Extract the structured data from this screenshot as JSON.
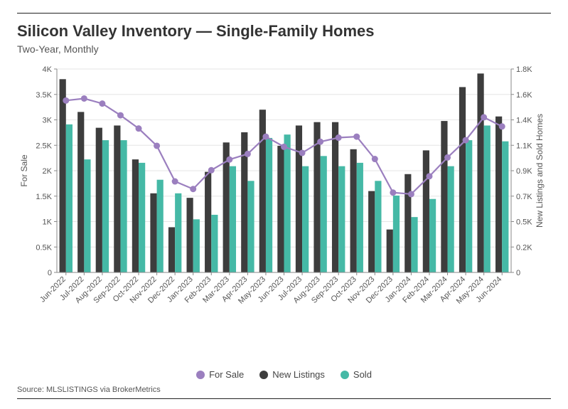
{
  "header": {
    "title": "Silicon Valley Inventory — Single-Family Homes",
    "subtitle": "Two-Year, Monthly"
  },
  "footer": {
    "source": "Source:  MLSLISTINGS via BrokerMetrics"
  },
  "legend": {
    "for_sale": "For Sale",
    "new_listings": "New Listings",
    "sold": "Sold"
  },
  "chart": {
    "type": "combo-bar-line",
    "background_color": "#ffffff",
    "gridline_color": "#e6e6e6",
    "axis_color": "#888888",
    "tick_label_color": "#555555",
    "tick_fontsize": 11,
    "axis_title_fontsize": 12,
    "x_tick_angle_deg": -45,
    "left_axis": {
      "title": "For Sale",
      "min": 0,
      "max": 4000,
      "ticks": [
        0,
        500,
        1000,
        1500,
        2000,
        2500,
        3000,
        3500,
        4000
      ],
      "tick_labels": [
        "0",
        "0.5K",
        "1K",
        "1.5K",
        "2K",
        "2.5K",
        "3K",
        "3.5K",
        "4K"
      ]
    },
    "right_axis": {
      "title": "New Listings and Sold Homes",
      "min": 0,
      "max": 1800,
      "ticks": [
        0,
        225,
        450,
        675,
        900,
        1125,
        1350,
        1575,
        1800
      ],
      "tick_labels": [
        "0",
        "0.2K",
        "0.5K",
        "0.7K",
        "0.9K",
        "1.1K",
        "1.4K",
        "1.6K",
        "1.8K"
      ]
    },
    "categories": [
      "Jun-2022",
      "Jul-2022",
      "Aug-2022",
      "Sep-2022",
      "Oct-2022",
      "Nov-2022",
      "Dec-2022",
      "Jan-2023",
      "Feb-2023",
      "Mar-2023",
      "Apr-2023",
      "May-2023",
      "Jun-2023",
      "Jul-2023",
      "Aug-2023",
      "Sep-2023",
      "Oct-2023",
      "Nov-2023",
      "Dec-2023",
      "Jan-2024",
      "Feb-2024",
      "Mar-2024",
      "Apr-2024",
      "May-2024",
      "Jun-2024"
    ],
    "series": {
      "for_sale": {
        "kind": "line",
        "axis": "left",
        "color": "#9b7fbf",
        "marker_shape": "circle",
        "marker_radius": 4.5,
        "line_width": 2.2,
        "values": [
          3380,
          3420,
          3320,
          3090,
          2830,
          2490,
          1790,
          1640,
          2010,
          2220,
          2330,
          2670,
          2470,
          2350,
          2570,
          2650,
          2670,
          2230,
          1570,
          1540,
          1890,
          2260,
          2600,
          3050,
          2870
        ]
      },
      "new_listings": {
        "kind": "bar",
        "axis": "right",
        "color": "#3d3d3d",
        "bar_width_ratio": 0.36,
        "values": [
          1710,
          1420,
          1280,
          1300,
          1000,
          700,
          400,
          660,
          890,
          1150,
          1240,
          1440,
          1120,
          1300,
          1330,
          1330,
          1090,
          720,
          380,
          870,
          1080,
          1340,
          1640,
          1760,
          1380
        ]
      },
      "sold": {
        "kind": "bar",
        "axis": "right",
        "color": "#45b9a6",
        "bar_width_ratio": 0.36,
        "values": [
          1310,
          1000,
          1170,
          1170,
          970,
          820,
          700,
          470,
          510,
          940,
          810,
          1190,
          1220,
          940,
          1030,
          940,
          970,
          810,
          680,
          490,
          650,
          940,
          1170,
          1300,
          1160
        ]
      }
    }
  }
}
